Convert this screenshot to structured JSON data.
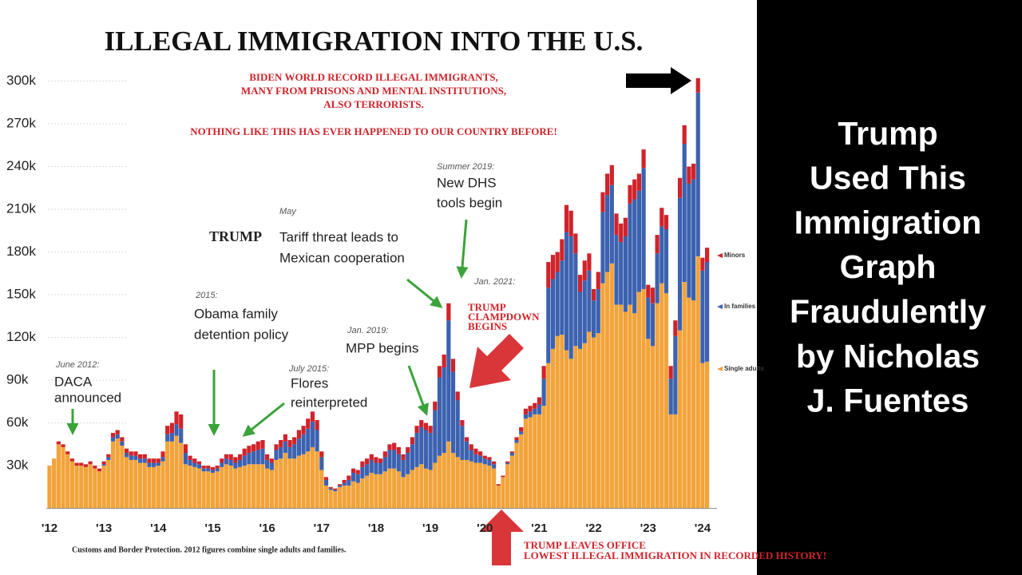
{
  "chart_data": {
    "type": "stacked_bar",
    "title": "ILLEGAL IMMIGRATION INTO THE U.S.",
    "headline": [
      "BIDEN WORLD RECORD ILLEGAL IMMIGRANTS,",
      "MANY FROM PRISONS AND MENTAL INSTITUTIONS,",
      "ALSO TERRORISTS.",
      "NOTHING LIKE THIS HAS EVER HAPPENED TO OUR COUNTRY BEFORE!"
    ],
    "annotations": [
      {
        "date": "June 2012:",
        "text": [
          "DACA",
          "announced"
        ]
      },
      {
        "date": "2015:",
        "text": [
          "Obama family",
          "detention policy"
        ]
      },
      {
        "date": "July 2015:",
        "text": [
          "Flores",
          "reinterpreted"
        ]
      },
      {
        "date": "Jan. 2019:",
        "text": [
          "MPP begins"
        ]
      },
      {
        "date": "May",
        "text": [
          "TRUMP",
          "Tariff threat leads to",
          "Mexican cooperation"
        ]
      },
      {
        "date": "Summer 2019:",
        "text": [
          "New DHS",
          "tools begin"
        ]
      },
      {
        "date": "Jan. 2021:",
        "text": [
          "TRUMP",
          "CLAMPDOWN",
          "BEGINS"
        ]
      },
      {
        "text": [
          "TRUMP LEAVES OFFICE",
          "LOWEST ILLEGAL IMMIGRATION IN RECORDED HISTORY!"
        ]
      }
    ],
    "source": "Customs and Border Protection. 2012 figures combine single adults and families.",
    "side_text": [
      "Trump",
      "Used This",
      "Immigration",
      "Graph",
      "Fraudulently",
      "by Nicholas",
      "J. Fuentes"
    ],
    "ylim": [
      0,
      305000
    ],
    "yticks": [
      {
        "value": 30000,
        "label": "30k"
      },
      {
        "value": 60000,
        "label": "60k"
      },
      {
        "value": 90000,
        "label": "90k"
      },
      {
        "value": 120000,
        "label": "120k"
      },
      {
        "value": 150000,
        "label": "150k"
      },
      {
        "value": 180000,
        "label": "180k"
      },
      {
        "value": 210000,
        "label": "210k"
      },
      {
        "value": 240000,
        "label": "240k"
      },
      {
        "value": 270000,
        "label": "270k"
      },
      {
        "value": 300000,
        "label": "300k"
      }
    ],
    "grid": true,
    "categories": [
      "'12",
      null,
      null,
      null,
      null,
      null,
      null,
      null,
      null,
      null,
      null,
      null,
      "'13",
      null,
      null,
      null,
      null,
      null,
      null,
      null,
      null,
      null,
      null,
      null,
      "'14",
      null,
      null,
      null,
      null,
      null,
      null,
      null,
      null,
      null,
      null,
      null,
      "'15",
      null,
      null,
      null,
      null,
      null,
      null,
      null,
      null,
      null,
      null,
      null,
      "'16",
      null,
      null,
      null,
      null,
      null,
      null,
      null,
      null,
      null,
      null,
      null,
      "'17",
      null,
      null,
      null,
      null,
      null,
      null,
      null,
      null,
      null,
      null,
      null,
      "'18",
      null,
      null,
      null,
      null,
      null,
      null,
      null,
      null,
      null,
      null,
      null,
      "'19",
      null,
      null,
      null,
      null,
      null,
      null,
      null,
      null,
      null,
      null,
      null,
      "'20",
      null,
      null,
      null,
      null,
      null,
      null,
      null,
      null,
      null,
      null,
      null,
      "'21",
      null,
      null,
      null,
      null,
      null,
      null,
      null,
      null,
      null,
      null,
      null,
      "'22",
      null,
      null,
      null,
      null,
      null,
      null,
      null,
      null,
      null,
      null,
      null,
      "'23",
      null,
      null,
      null,
      null,
      null,
      null,
      null,
      null,
      null,
      null,
      null,
      "'24",
      null
    ],
    "series": [
      {
        "name": "Single adults",
        "color": "#f2a33a",
        "values": [
          30000,
          35000,
          45000,
          43000,
          38000,
          33000,
          30000,
          30000,
          29000,
          31000,
          28000,
          26000,
          30000,
          34000,
          47000,
          49000,
          44000,
          36000,
          34000,
          34000,
          32000,
          32000,
          29000,
          29000,
          30000,
          33000,
          47000,
          47000,
          51000,
          46000,
          31000,
          30000,
          29000,
          28000,
          26000,
          26000,
          25000,
          26000,
          29000,
          31000,
          30000,
          28000,
          29000,
          30000,
          31000,
          31000,
          31000,
          31000,
          28000,
          27000,
          34000,
          35000,
          39000,
          35000,
          35000,
          37000,
          38000,
          40000,
          43000,
          40000,
          27000,
          16000,
          13000,
          12000,
          15000,
          16000,
          16000,
          19000,
          18000,
          21000,
          23000,
          25000,
          24000,
          24000,
          26000,
          28000,
          28000,
          26000,
          22000,
          24000,
          27000,
          29000,
          31000,
          28000,
          27000,
          32000,
          37000,
          39000,
          47000,
          39000,
          36000,
          34000,
          34000,
          33000,
          32000,
          32000,
          31000,
          30000,
          28000,
          16000,
          22000,
          31000,
          37000,
          46000,
          52000,
          63000,
          64000,
          66000,
          66000,
          72000,
          102000,
          112000,
          121000,
          122000,
          111000,
          105000,
          114000,
          112000,
          116000,
          124000,
          120000,
          123000,
          158000,
          166000,
          172000,
          143000,
          143000,
          138000,
          143000,
          137000,
          152000,
          154000,
          119000,
          114000,
          144000,
          158000,
          151000,
          66000,
          66000,
          125000,
          159000,
          148000,
          146000,
          177000,
          102000,
          103000
        ]
      },
      {
        "name": "In families",
        "color": "#3c62b0",
        "values": [
          0,
          0,
          0,
          0,
          0,
          0,
          0,
          0,
          0,
          0,
          0,
          0,
          1000,
          2000,
          3000,
          3000,
          3000,
          3000,
          3000,
          3000,
          3000,
          3000,
          3000,
          3000,
          2000,
          3000,
          5000,
          6000,
          8000,
          10000,
          8000,
          4000,
          3000,
          3000,
          2000,
          2000,
          2000,
          2000,
          3000,
          4000,
          4000,
          4000,
          5000,
          7000,
          8000,
          9000,
          10000,
          11000,
          6000,
          5000,
          7000,
          8000,
          8000,
          8000,
          10000,
          12000,
          14000,
          16000,
          18000,
          15000,
          9000,
          4000,
          1000,
          1000,
          1000,
          2000,
          4000,
          6000,
          6000,
          8000,
          8000,
          9000,
          8000,
          8000,
          10000,
          13000,
          13000,
          12000,
          12000,
          15000,
          18000,
          24000,
          26000,
          27000,
          26000,
          37000,
          55000,
          60000,
          85000,
          57000,
          40000,
          24000,
          13000,
          8000,
          6000,
          5000,
          4000,
          4000,
          3000,
          0,
          0,
          1000,
          2000,
          2000,
          2000,
          3000,
          4000,
          4000,
          7000,
          19000,
          53000,
          49000,
          45000,
          52000,
          83000,
          86000,
          65000,
          40000,
          44000,
          43000,
          26000,
          31000,
          50000,
          54000,
          55000,
          49000,
          44000,
          53000,
          71000,
          80000,
          71000,
          85000,
          29000,
          30000,
          35000,
          40000,
          45000,
          25000,
          55000,
          93000,
          97000,
          80000,
          85000,
          115000,
          65000,
          70000
        ]
      },
      {
        "name": "Minors",
        "color": "#d0232a",
        "values": [
          0,
          0,
          2000,
          2000,
          2000,
          2000,
          2000,
          2000,
          2000,
          2000,
          2000,
          2000,
          2000,
          2000,
          3000,
          3000,
          3000,
          3000,
          3000,
          3000,
          3000,
          3000,
          3000,
          3000,
          3000,
          4000,
          6000,
          7000,
          9000,
          10000,
          6000,
          3000,
          3000,
          2000,
          2000,
          2000,
          2000,
          2000,
          3000,
          3000,
          4000,
          4000,
          4000,
          5000,
          5000,
          5000,
          6000,
          6000,
          4000,
          3000,
          4000,
          5000,
          5000,
          5000,
          5000,
          6000,
          6000,
          7000,
          7000,
          7000,
          4000,
          2000,
          1000,
          1000,
          1000,
          2000,
          3000,
          3000,
          3000,
          4000,
          4000,
          4000,
          4000,
          3000,
          4000,
          4000,
          5000,
          5000,
          4000,
          4000,
          5000,
          5000,
          5000,
          5000,
          5000,
          6000,
          8000,
          9000,
          12000,
          9000,
          6000,
          4000,
          3000,
          4000,
          4000,
          3000,
          2000,
          2000,
          2000,
          1000,
          1000,
          1000,
          1000,
          2000,
          3000,
          4000,
          4000,
          4000,
          5000,
          9000,
          18000,
          17000,
          14000,
          15000,
          19000,
          18000,
          14000,
          12000,
          14000,
          12000,
          8000,
          12000,
          14000,
          15000,
          14000,
          15000,
          13000,
          13000,
          13000,
          14000,
          12000,
          13000,
          9000,
          11000,
          13000,
          13000,
          10000,
          9000,
          11000,
          14000,
          13000,
          12000,
          11000,
          10000,
          9000,
          10000
        ]
      }
    ]
  }
}
